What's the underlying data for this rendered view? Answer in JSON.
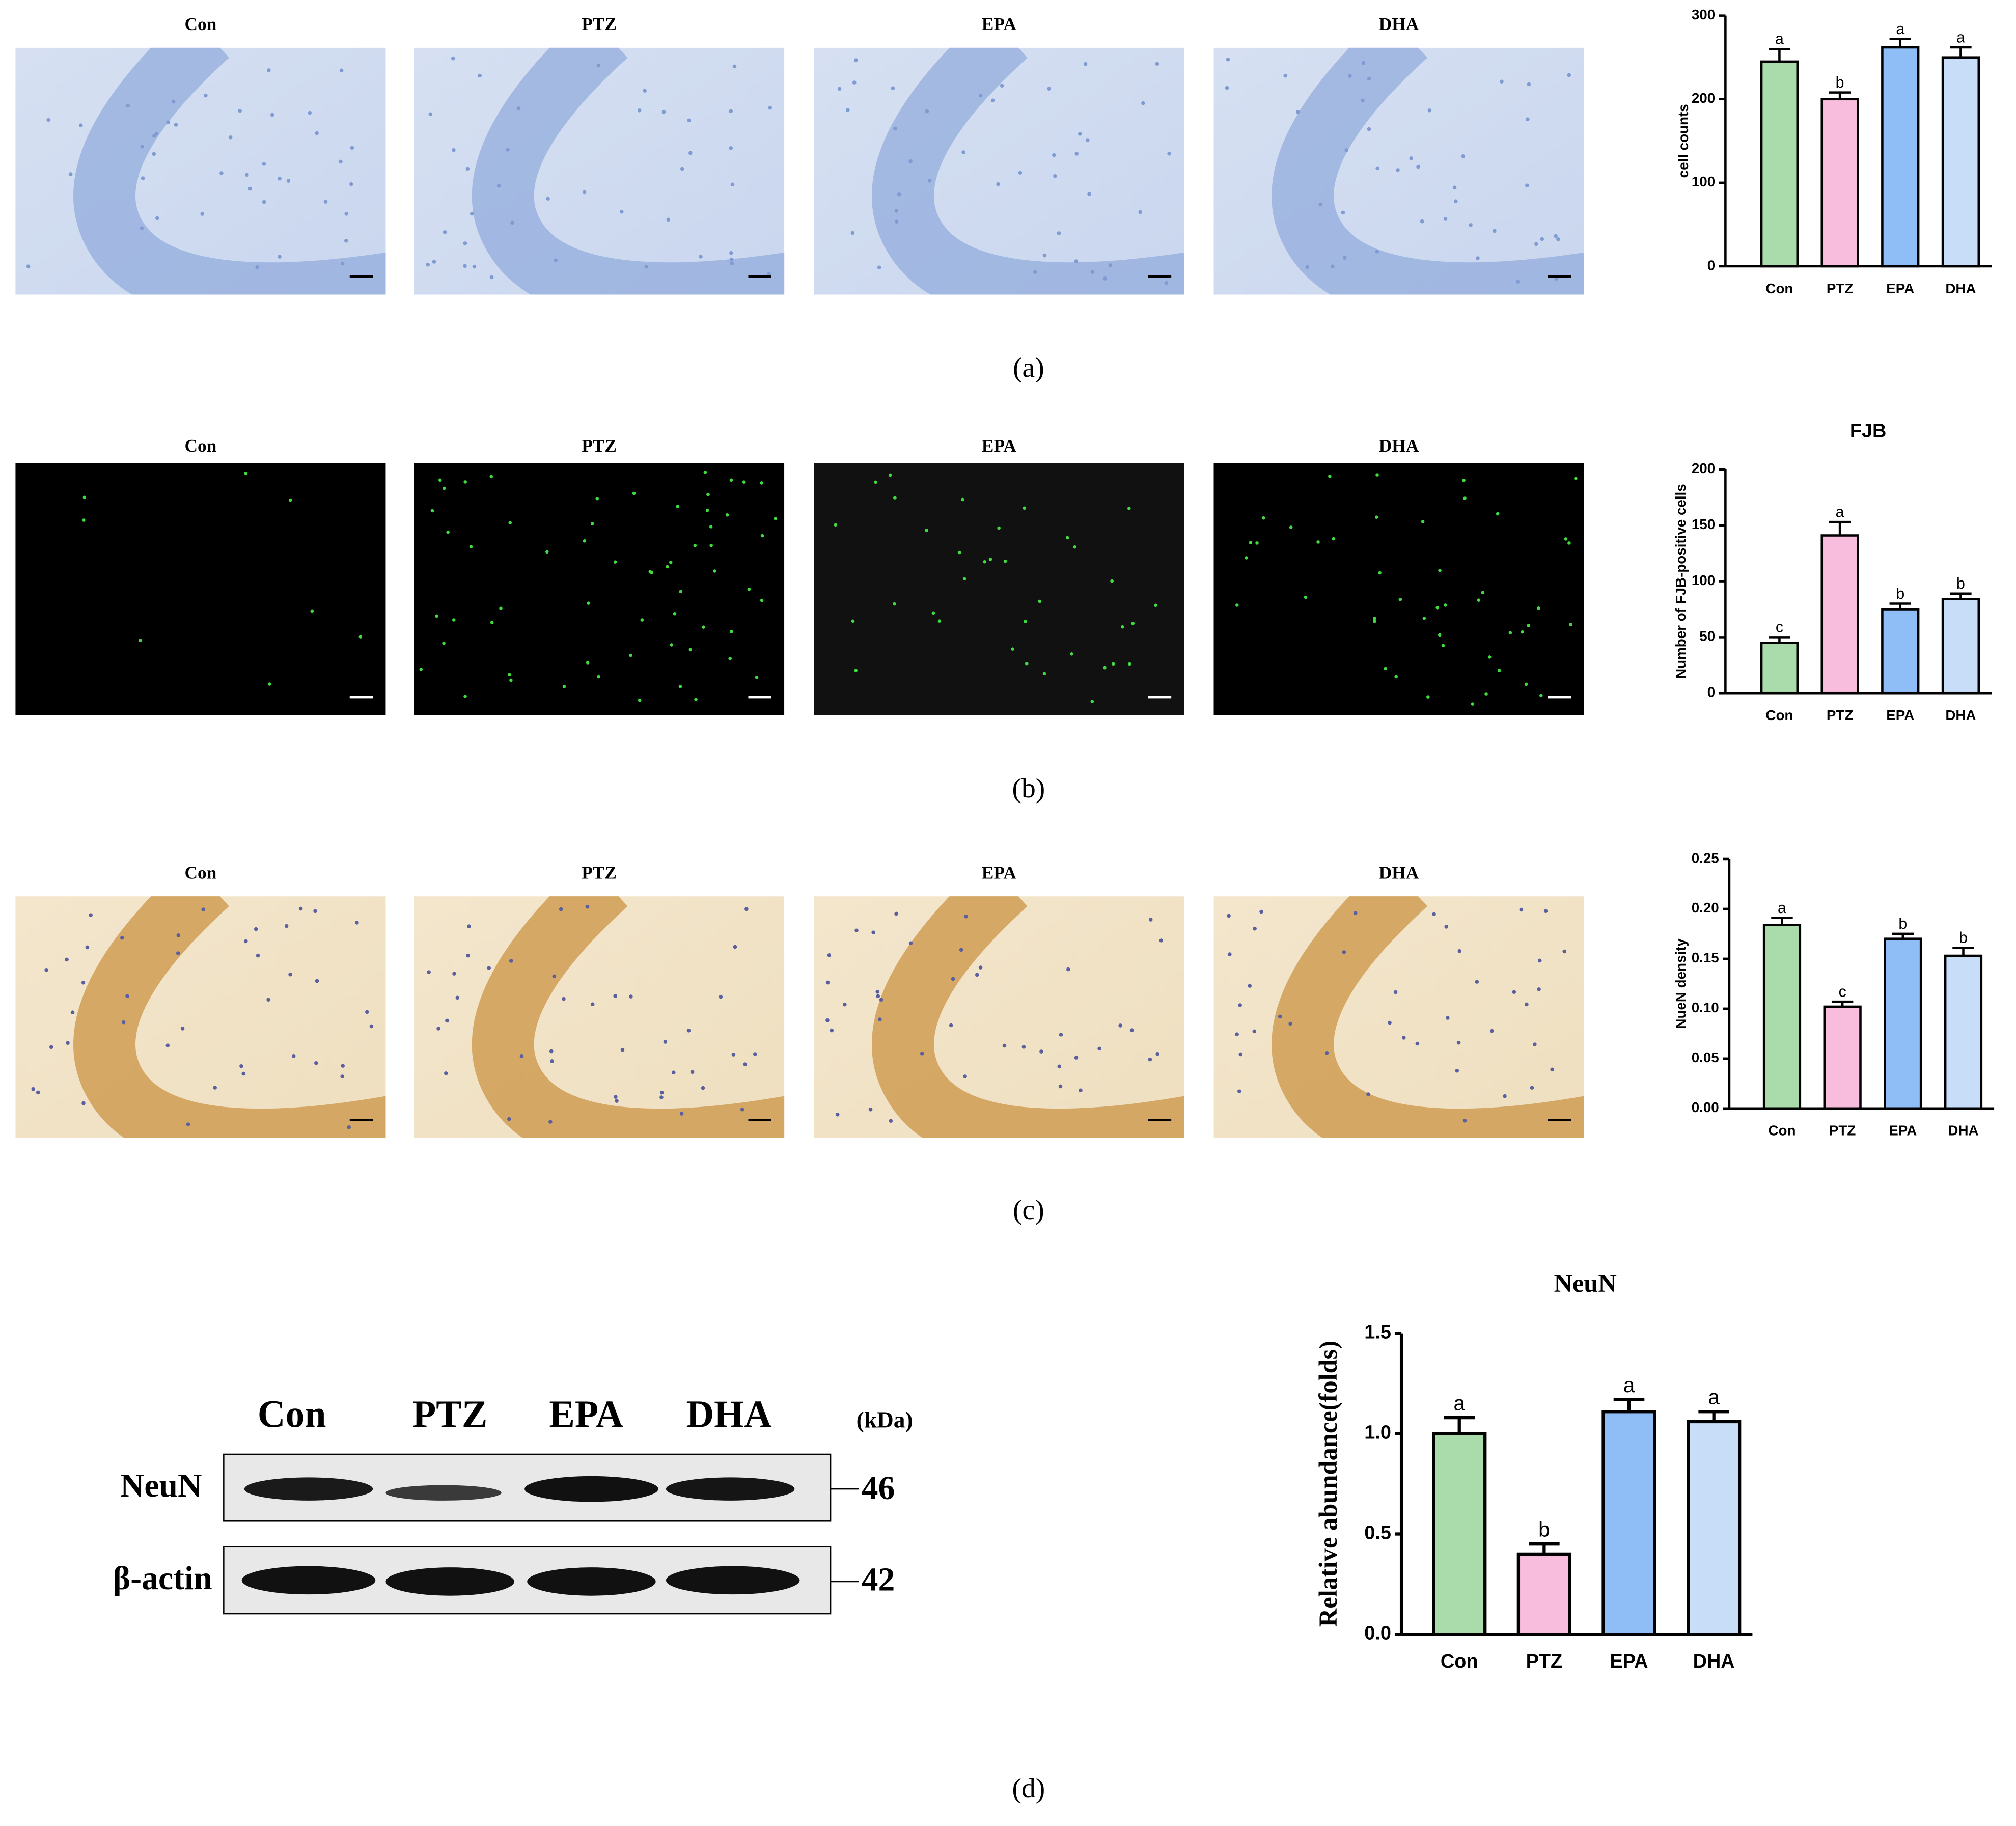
{
  "panels": [
    {
      "label": "(a)",
      "image_labels": [
        "Con",
        "PTZ",
        "EPA",
        "DHA"
      ]
    },
    {
      "label": "(b)",
      "image_labels": [
        "Con",
        "PTZ",
        "EPA",
        "DHA"
      ]
    },
    {
      "label": "(c)",
      "image_labels": [
        "Con",
        "PTZ",
        "EPA",
        "DHA"
      ]
    },
    {
      "label": "(d)"
    }
  ],
  "western_blot": {
    "lanes": [
      "Con",
      "PTZ",
      "EPA",
      "DHA"
    ],
    "unit": "(kDa)",
    "bands": [
      {
        "name": "NeuN",
        "size": 46
      },
      {
        "name": "β-actin",
        "size": 42
      }
    ]
  },
  "chart_data": [
    {
      "type": "bar",
      "ylabel": "cell counts",
      "categories": [
        "Con",
        "PTZ",
        "EPA",
        "DHA"
      ],
      "values": [
        245,
        200,
        262,
        250
      ],
      "errors": [
        15,
        8,
        10,
        12
      ],
      "letters": [
        "a",
        "b",
        "a",
        "a"
      ],
      "colors": [
        "#a9dcaa",
        "#f8bcdc",
        "#8fbdf6",
        "#c7ddf8"
      ],
      "ylim": [
        0,
        300
      ],
      "yticks": [
        0,
        100,
        200,
        300
      ]
    },
    {
      "type": "bar",
      "title": "FJB",
      "ylabel": "Number of FJB-positive cells",
      "categories": [
        "Con",
        "PTZ",
        "EPA",
        "DHA"
      ],
      "values": [
        45,
        141,
        75,
        84
      ],
      "errors": [
        5,
        12,
        5,
        5
      ],
      "letters": [
        "c",
        "a",
        "b",
        "b"
      ],
      "colors": [
        "#a9dcaa",
        "#f8bcdc",
        "#8fbdf6",
        "#c7ddf8"
      ],
      "ylim": [
        0,
        200
      ],
      "yticks": [
        0,
        50,
        100,
        150,
        200
      ]
    },
    {
      "type": "bar",
      "ylabel": "NueN density",
      "categories": [
        "Con",
        "PTZ",
        "EPA",
        "DHA"
      ],
      "values": [
        0.184,
        0.102,
        0.17,
        0.153
      ],
      "errors": [
        0.007,
        0.005,
        0.005,
        0.008
      ],
      "letters": [
        "a",
        "c",
        "b",
        "b"
      ],
      "colors": [
        "#a9dcaa",
        "#f8bcdc",
        "#8fbdf6",
        "#c7ddf8"
      ],
      "ylim": [
        0,
        0.25
      ],
      "yticks": [
        {
          "value": 0,
          "label": "0.00"
        },
        {
          "value": 0.05,
          "label": "0.05"
        },
        {
          "value": 0.1,
          "label": "0.10"
        },
        {
          "value": 0.15,
          "label": "0.15"
        },
        {
          "value": 0.2,
          "label": "0.20"
        },
        {
          "value": 0.25,
          "label": "0.25"
        }
      ]
    },
    {
      "type": "bar",
      "title": "NeuN",
      "ylabel": "Relative abundance(folds)",
      "categories": [
        "Con",
        "PTZ",
        "EPA",
        "DHA"
      ],
      "values": [
        1.0,
        0.4,
        1.11,
        1.06
      ],
      "errors": [
        0.08,
        0.05,
        0.06,
        0.05
      ],
      "letters": [
        "a",
        "b",
        "a",
        "a"
      ],
      "colors": [
        "#a9dcaa",
        "#f8bcdc",
        "#8fbdf6",
        "#c7ddf8"
      ],
      "ylim": [
        0,
        1.5
      ],
      "yticks": [
        {
          "value": 0,
          "label": "0.0"
        },
        {
          "value": 0.5,
          "label": "0.5"
        },
        {
          "value": 1,
          "label": "1.0"
        },
        {
          "value": 1.5,
          "label": "1.5"
        }
      ]
    }
  ]
}
